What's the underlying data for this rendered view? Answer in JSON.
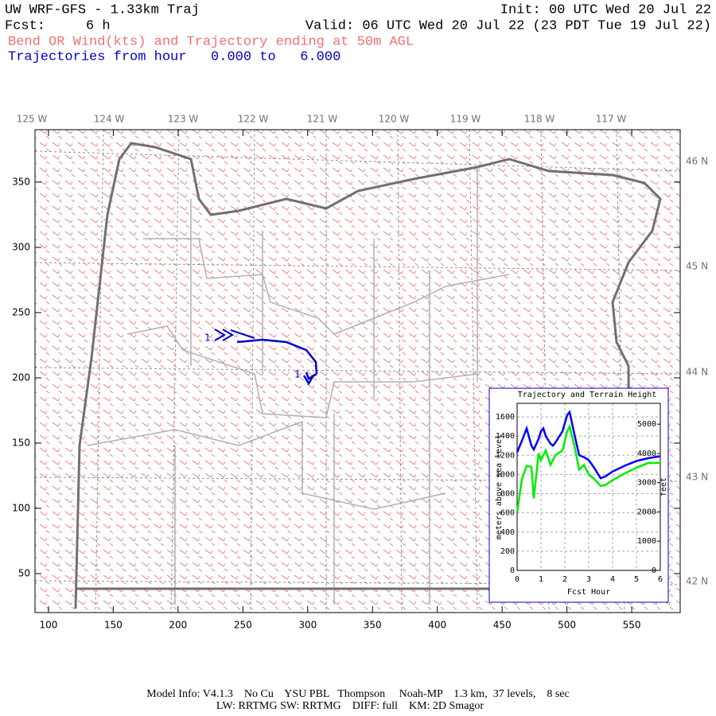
{
  "header": {
    "title": "UW WRF-GFS - 1.33km Traj",
    "init": "Init: 00 UTC Wed 20 Jul 22",
    "forecast": "Fcst:     6 h",
    "valid": "Valid: 06 UTC Wed 20 Jul 22 (23 PDT Tue 19 Jul 22)",
    "field": "Bend OR Wind(kts) and Trajectory ending at 50m AGL",
    "trajectories": "Trajectories from hour   0.000 to   6.000"
  },
  "map": {
    "xlim": [
      89.6,
      587.4
    ],
    "ylim": [
      20.1,
      390.2
    ],
    "xticks": [
      100,
      150,
      200,
      250,
      300,
      350,
      400,
      450,
      500,
      550
    ],
    "yticks": [
      50,
      100,
      150,
      200,
      250,
      300,
      350
    ],
    "lon_labels": [
      "125 W",
      "124 W",
      "123 W",
      "122 W",
      "121 W",
      "120 W",
      "119 W",
      "118 W",
      "117 W"
    ],
    "lat_labels": [
      "46 N",
      "45 N",
      "44 N",
      "43 N",
      "42 N"
    ],
    "trajectory_labels": [
      "1",
      "1"
    ]
  },
  "chart_data": {
    "type": "line",
    "title": "Trajectory and Terrain Height",
    "x_label": "Fcst Hour",
    "y_label": "meters above sea level",
    "y2_label": "feet",
    "x": [
      0,
      0.2,
      0.4,
      0.6,
      0.7,
      0.9,
      1.0,
      1.1,
      1.2,
      1.4,
      1.5,
      1.6,
      1.9,
      2.1,
      2.2,
      2.4,
      2.6,
      2.8,
      3.0,
      3.2,
      3.5,
      3.7,
      4.0,
      4.5,
      5.0,
      5.5,
      6.0
    ],
    "series": [
      {
        "color": "#0000ff",
        "values": [
          1230,
          1350,
          1480,
          1300,
          1260,
          1370,
          1450,
          1480,
          1400,
          1320,
          1300,
          1330,
          1450,
          1620,
          1650,
          1420,
          1200,
          1180,
          1150,
          1080,
          960,
          980,
          1030,
          1090,
          1140,
          1170,
          1190
        ]
      },
      {
        "color": "#00ee00",
        "values": [
          600,
          950,
          1090,
          1080,
          750,
          1220,
          1150,
          1200,
          1250,
          1100,
          1150,
          1200,
          1250,
          1450,
          1500,
          1300,
          1050,
          1100,
          1000,
          960,
          880,
          890,
          940,
          1010,
          1070,
          1120,
          1120
        ]
      }
    ],
    "xlim": [
      0,
      6
    ],
    "xticks": [
      0,
      1,
      2,
      3,
      4,
      5,
      6
    ],
    "ylim": [
      0,
      1741
    ],
    "yticks": [
      0,
      200,
      400,
      600,
      800,
      1000,
      1200,
      1400,
      1600
    ],
    "y2lim": [
      0,
      5712
    ],
    "y2ticks": [
      0,
      1000,
      2000,
      3000,
      4000,
      5000
    ],
    "grid": true
  },
  "footer": {
    "line1": "Model Info: V4.1.3    No Cu    YSU PBL   Thompson     Noah-MP    1.3 km,  37 levels,    8 sec",
    "line2": "LW: RRTMG SW: RRTMG    DIFF: full    KM: 2D Smagor"
  }
}
